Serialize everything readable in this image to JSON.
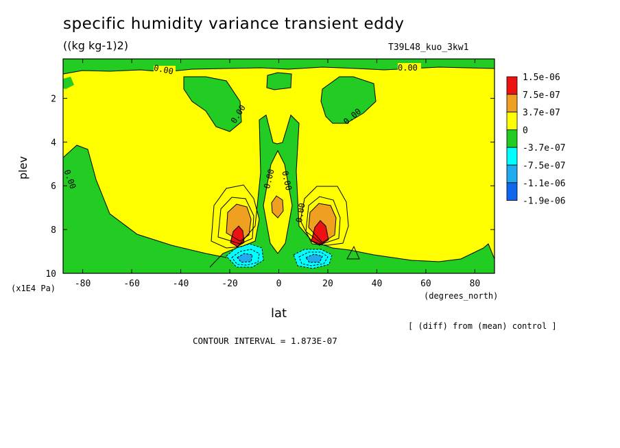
{
  "chart_data": {
    "type": "contour",
    "title": "specific humidity variance transient eddy",
    "units": "((kg kg-1)2)",
    "run_label": "T39L48_kuo_3kw1",
    "xlabel": "lat",
    "x_units": "(degrees_north)",
    "ylabel": "plev",
    "y_units": "(x1E4 Pa)",
    "xlim": [
      -88,
      88
    ],
    "ylim": [
      10,
      0.2
    ],
    "x_ticks": [
      "-80",
      "-60",
      "-40",
      "-20",
      "0",
      "20",
      "40",
      "60",
      "80"
    ],
    "y_ticks": [
      "2",
      "4",
      "6",
      "8",
      "10"
    ],
    "note": "[ (diff) from (mean) control ]",
    "contour_interval_label": "CONTOUR INTERVAL = 1.873E-07",
    "contour_labels": [
      "0.00",
      "0.00",
      "0.00",
      "0.00",
      "0.00",
      "0.00",
      "0.00",
      "0.00"
    ],
    "legend": {
      "position": "right",
      "levels": [
        "1.5e-06",
        "7.5e-07",
        "3.7e-07",
        "0",
        "-3.7e-07",
        "-7.5e-07",
        "-1.1e-06",
        "-1.9e-06"
      ],
      "colors": [
        "#ee1111",
        "#f0a020",
        "#ffff00",
        "#22cc22",
        "#00ffff",
        "#22aaee",
        "#1166ee"
      ]
    },
    "features": [
      {
        "name": "positive maximum",
        "lat": -17,
        "plev": 8.3,
        "level": "1.5e-06"
      },
      {
        "name": "positive maximum",
        "lat": 17,
        "plev": 8.3,
        "level": "1.5e-06"
      },
      {
        "name": "positive maximum",
        "lat": 0,
        "plev": 6.9,
        "level": "3.7e-07"
      },
      {
        "name": "negative minimum",
        "lat": -14,
        "plev": 9.2,
        "level": "-1.1e-06"
      },
      {
        "name": "negative minimum",
        "lat": 14,
        "plev": 9.3,
        "level": "-1.1e-06"
      }
    ]
  }
}
